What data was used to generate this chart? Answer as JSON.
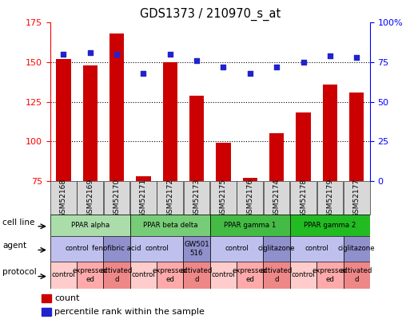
{
  "title": "GDS1373 / 210970_s_at",
  "samples": [
    "GSM52168",
    "GSM52169",
    "GSM52170",
    "GSM52171",
    "GSM52172",
    "GSM52173",
    "GSM52175",
    "GSM52176",
    "GSM52174",
    "GSM52178",
    "GSM52179",
    "GSM52177"
  ],
  "count_values": [
    152,
    148,
    168,
    78,
    150,
    129,
    99,
    77,
    105,
    118,
    136,
    131
  ],
  "percentile_values": [
    80,
    81,
    80,
    68,
    80,
    76,
    72,
    68,
    72,
    75,
    79,
    78
  ],
  "ylim_left": [
    75,
    175
  ],
  "ylim_right": [
    0,
    100
  ],
  "yticks_left": [
    75,
    100,
    125,
    150,
    175
  ],
  "yticks_right": [
    0,
    25,
    50,
    75,
    100
  ],
  "ytick_labels_right": [
    "0",
    "25",
    "50",
    "75",
    "100%"
  ],
  "bar_color": "#cc0000",
  "dot_color": "#2222cc",
  "cell_line_colors": [
    "#aaddaa",
    "#77cc77",
    "#44bb44",
    "#22bb22"
  ],
  "cell_line_texts": [
    "PPAR alpha",
    "PPAR beta delta",
    "PPAR gamma 1",
    "PPAR gamma 2"
  ],
  "cell_line_spans": [
    [
      0,
      3
    ],
    [
      3,
      6
    ],
    [
      6,
      9
    ],
    [
      9,
      12
    ]
  ],
  "agent_groups": [
    {
      "text": "control",
      "start": 0,
      "end": 2,
      "color": "#c0c0ee"
    },
    {
      "text": "fenofibric acid",
      "start": 2,
      "end": 3,
      "color": "#9090cc"
    },
    {
      "text": "control",
      "start": 3,
      "end": 5,
      "color": "#c0c0ee"
    },
    {
      "text": "GW501\n516",
      "start": 5,
      "end": 6,
      "color": "#9090cc"
    },
    {
      "text": "control",
      "start": 6,
      "end": 8,
      "color": "#c0c0ee"
    },
    {
      "text": "ciglitazone",
      "start": 8,
      "end": 9,
      "color": "#9090cc"
    },
    {
      "text": "control",
      "start": 9,
      "end": 11,
      "color": "#c0c0ee"
    },
    {
      "text": "ciglitazone",
      "start": 11,
      "end": 12,
      "color": "#9090cc"
    }
  ],
  "protocol_groups": [
    {
      "text": "control",
      "start": 0,
      "end": 1,
      "color": "#ffcccc"
    },
    {
      "text": "expressed\ned",
      "start": 1,
      "end": 2,
      "color": "#ffaaaa"
    },
    {
      "text": "activated\nd",
      "start": 2,
      "end": 3,
      "color": "#ee8888"
    },
    {
      "text": "control",
      "start": 3,
      "end": 4,
      "color": "#ffcccc"
    },
    {
      "text": "expressed\ned",
      "start": 4,
      "end": 5,
      "color": "#ffaaaa"
    },
    {
      "text": "activated\nd",
      "start": 5,
      "end": 6,
      "color": "#ee8888"
    },
    {
      "text": "control",
      "start": 6,
      "end": 7,
      "color": "#ffcccc"
    },
    {
      "text": "expressed\ned",
      "start": 7,
      "end": 8,
      "color": "#ffaaaa"
    },
    {
      "text": "activated\nd",
      "start": 8,
      "end": 9,
      "color": "#ee8888"
    },
    {
      "text": "control",
      "start": 9,
      "end": 10,
      "color": "#ffcccc"
    },
    {
      "text": "expressed\ned",
      "start": 10,
      "end": 11,
      "color": "#ffaaaa"
    },
    {
      "text": "activated\nd",
      "start": 11,
      "end": 12,
      "color": "#ee8888"
    }
  ],
  "bg_color": "#ffffff",
  "sample_bg": "#d8d8d8"
}
